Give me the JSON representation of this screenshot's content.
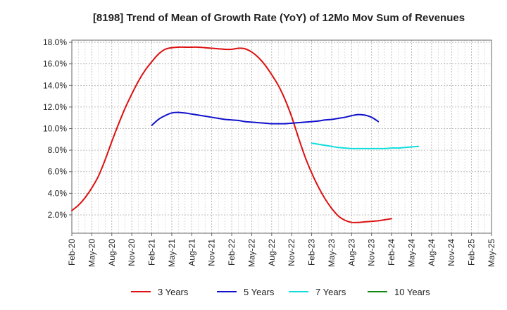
{
  "chart_data": {
    "type": "line",
    "title": "[8198]  Trend of Mean of Growth Rate (YoY) of 12Mo Mov Sum of Revenues",
    "xlabel": "",
    "ylabel": "",
    "ylim": [
      0.3,
      18.2
    ],
    "yticks": [
      2.0,
      4.0,
      6.0,
      8.0,
      10.0,
      12.0,
      14.0,
      16.0,
      18.0
    ],
    "ytick_labels": [
      "2.0%",
      "4.0%",
      "6.0%",
      "8.0%",
      "10.0%",
      "12.0%",
      "14.0%",
      "16.0%",
      "18.0%"
    ],
    "xtick_labels": [
      "Feb-20",
      "May-20",
      "Aug-20",
      "Nov-20",
      "Feb-21",
      "May-21",
      "Aug-21",
      "Nov-21",
      "Feb-22",
      "May-22",
      "Aug-22",
      "Nov-22",
      "Feb-23",
      "May-23",
      "Aug-23",
      "Nov-23",
      "Feb-24",
      "May-24",
      "Aug-24",
      "Nov-24",
      "Feb-25",
      "May-25"
    ],
    "x_range_months": [
      0,
      63
    ],
    "grid": true,
    "legend_position": "bottom",
    "series": [
      {
        "name": "3 Years",
        "color": "#dd1111",
        "points": [
          [
            0,
            2.4
          ],
          [
            1,
            2.9
          ],
          [
            2,
            3.6
          ],
          [
            3,
            4.5
          ],
          [
            4,
            5.6
          ],
          [
            5,
            7.1
          ],
          [
            6,
            8.8
          ],
          [
            7,
            10.4
          ],
          [
            8,
            11.9
          ],
          [
            9,
            13.2
          ],
          [
            10,
            14.4
          ],
          [
            11,
            15.4
          ],
          [
            12,
            16.2
          ],
          [
            13,
            16.9
          ],
          [
            14,
            17.35
          ],
          [
            15,
            17.5
          ],
          [
            16,
            17.55
          ],
          [
            17,
            17.55
          ],
          [
            18,
            17.55
          ],
          [
            19,
            17.55
          ],
          [
            20,
            17.5
          ],
          [
            21,
            17.45
          ],
          [
            22,
            17.4
          ],
          [
            23,
            17.35
          ],
          [
            24,
            17.35
          ],
          [
            25,
            17.45
          ],
          [
            26,
            17.4
          ],
          [
            27,
            17.1
          ],
          [
            28,
            16.6
          ],
          [
            29,
            15.9
          ],
          [
            30,
            15.0
          ],
          [
            31,
            14.0
          ],
          [
            32,
            12.7
          ],
          [
            33,
            11.1
          ],
          [
            34,
            9.2
          ],
          [
            35,
            7.4
          ],
          [
            36,
            5.9
          ],
          [
            37,
            4.6
          ],
          [
            38,
            3.5
          ],
          [
            39,
            2.6
          ],
          [
            40,
            1.9
          ],
          [
            41,
            1.5
          ],
          [
            42,
            1.3
          ],
          [
            43,
            1.3
          ],
          [
            44,
            1.35
          ],
          [
            45,
            1.4
          ],
          [
            46,
            1.45
          ],
          [
            47,
            1.55
          ],
          [
            48,
            1.65
          ]
        ]
      },
      {
        "name": "5 Years",
        "color": "#1111cc",
        "points": [
          [
            12,
            10.3
          ],
          [
            13,
            10.85
          ],
          [
            14,
            11.2
          ],
          [
            15,
            11.45
          ],
          [
            16,
            11.5
          ],
          [
            17,
            11.45
          ],
          [
            18,
            11.35
          ],
          [
            19,
            11.25
          ],
          [
            20,
            11.15
          ],
          [
            21,
            11.05
          ],
          [
            22,
            10.95
          ],
          [
            23,
            10.85
          ],
          [
            24,
            10.8
          ],
          [
            25,
            10.75
          ],
          [
            26,
            10.65
          ],
          [
            27,
            10.6
          ],
          [
            28,
            10.55
          ],
          [
            29,
            10.5
          ],
          [
            30,
            10.45
          ],
          [
            31,
            10.45
          ],
          [
            32,
            10.45
          ],
          [
            33,
            10.5
          ],
          [
            34,
            10.55
          ],
          [
            35,
            10.6
          ],
          [
            36,
            10.65
          ],
          [
            37,
            10.7
          ],
          [
            38,
            10.8
          ],
          [
            39,
            10.85
          ],
          [
            40,
            10.95
          ],
          [
            41,
            11.05
          ],
          [
            42,
            11.2
          ],
          [
            43,
            11.3
          ],
          [
            44,
            11.25
          ],
          [
            45,
            11.05
          ],
          [
            46,
            10.65
          ]
        ]
      },
      {
        "name": "7 Years",
        "color": "#11dddd",
        "points": [
          [
            36,
            8.65
          ],
          [
            37,
            8.55
          ],
          [
            38,
            8.45
          ],
          [
            39,
            8.35
          ],
          [
            40,
            8.25
          ],
          [
            41,
            8.2
          ],
          [
            42,
            8.15
          ],
          [
            43,
            8.15
          ],
          [
            44,
            8.15
          ],
          [
            45,
            8.15
          ],
          [
            46,
            8.15
          ],
          [
            47,
            8.15
          ],
          [
            48,
            8.2
          ],
          [
            49,
            8.2
          ],
          [
            50,
            8.25
          ],
          [
            51,
            8.3
          ],
          [
            52,
            8.35
          ]
        ]
      },
      {
        "name": "10 Years",
        "color": "#118811",
        "points": []
      }
    ]
  }
}
